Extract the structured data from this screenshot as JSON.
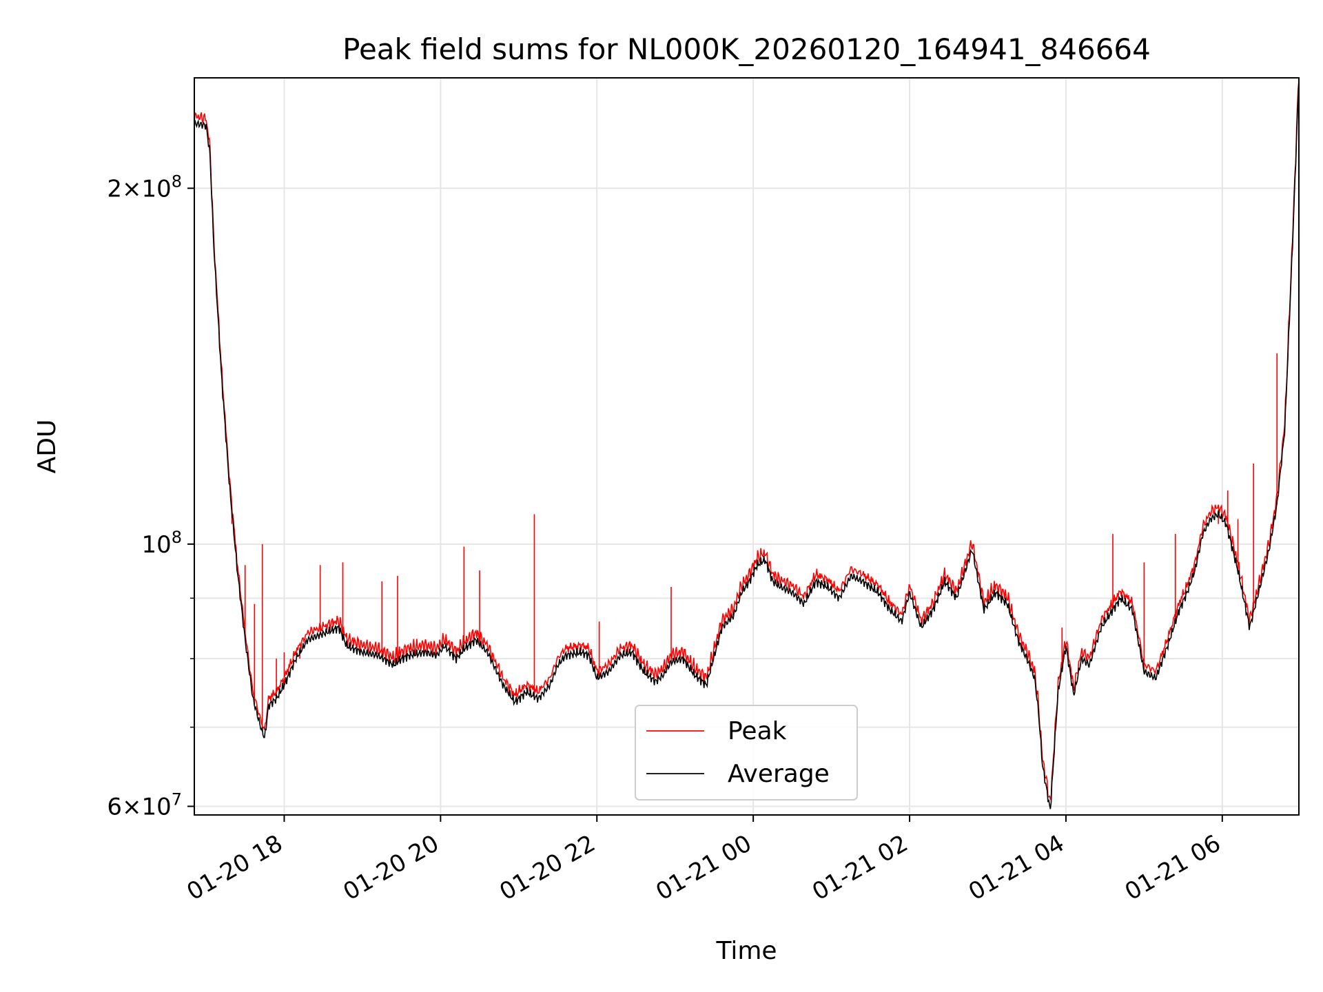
{
  "chart_data": {
    "type": "line",
    "title": "Peak field sums for NL000K_20260120_164941_846664",
    "xlabel": "Time",
    "ylabel": "ADU",
    "yscale": "log",
    "ylim": [
      59000000,
      248000000
    ],
    "xlim_hours": [
      16.85,
      30.98
    ],
    "grid": true,
    "legend_position": "lower-center",
    "x_ticks": [
      {
        "hour": 18,
        "label": "01-20 18"
      },
      {
        "hour": 20,
        "label": "01-20 20"
      },
      {
        "hour": 22,
        "label": "01-20 22"
      },
      {
        "hour": 24,
        "label": "01-21 00"
      },
      {
        "hour": 26,
        "label": "01-21 02"
      },
      {
        "hour": 28,
        "label": "01-21 04"
      },
      {
        "hour": 30,
        "label": "01-21 06"
      }
    ],
    "y_major_ticks": [
      {
        "value": 60000000,
        "mant": "6",
        "exp": "7"
      },
      {
        "value": 100000000,
        "mant": "",
        "exp": "8"
      },
      {
        "value": 200000000,
        "mant": "2",
        "exp": "8"
      }
    ],
    "y_minor_ticks": [
      70000000,
      80000000,
      90000000
    ],
    "series": [
      {
        "name": "Average",
        "color": "#000000",
        "x_hours": [
          16.85,
          17.0,
          17.05,
          17.1,
          17.2,
          17.3,
          17.4,
          17.5,
          17.6,
          17.7,
          17.75,
          17.8,
          17.9,
          18.0,
          18.15,
          18.3,
          18.5,
          18.7,
          18.8,
          18.9,
          19.0,
          19.2,
          19.4,
          19.5,
          19.6,
          19.8,
          19.95,
          20.05,
          20.2,
          20.3,
          20.45,
          20.6,
          20.8,
          20.95,
          21.1,
          21.25,
          21.4,
          21.5,
          21.6,
          21.8,
          21.9,
          22.0,
          22.15,
          22.3,
          22.45,
          22.6,
          22.75,
          22.85,
          22.95,
          23.1,
          23.25,
          23.4,
          23.6,
          23.75,
          23.85,
          23.95,
          24.05,
          24.15,
          24.25,
          24.35,
          24.5,
          24.65,
          24.8,
          24.95,
          25.1,
          25.25,
          25.4,
          25.6,
          25.75,
          25.9,
          26.0,
          26.15,
          26.3,
          26.45,
          26.6,
          26.8,
          26.95,
          27.1,
          27.25,
          27.4,
          27.5,
          27.6,
          27.65,
          27.7,
          27.8,
          27.9,
          28.0,
          28.1,
          28.2,
          28.3,
          28.45,
          28.6,
          28.7,
          28.85,
          29.0,
          29.15,
          29.3,
          29.45,
          29.55,
          29.65,
          29.75,
          29.85,
          29.95,
          30.05,
          30.2,
          30.35,
          30.5,
          30.6,
          30.7,
          30.8,
          30.9,
          30.98
        ],
        "values": [
          227000000,
          226000000,
          214000000,
          178000000,
          138000000,
          112000000,
          95000000,
          83000000,
          74000000,
          70000000,
          68500000,
          73000000,
          74000000,
          76000000,
          80000000,
          83000000,
          84000000,
          85000000,
          82000000,
          81500000,
          81000000,
          80500000,
          79000000,
          80000000,
          80500000,
          81000000,
          80500000,
          82000000,
          80000000,
          81500000,
          83000000,
          81000000,
          76000000,
          73500000,
          75000000,
          74000000,
          76000000,
          79000000,
          80500000,
          81000000,
          80500000,
          77000000,
          78000000,
          80500000,
          81000000,
          78000000,
          76500000,
          77500000,
          79500000,
          80000000,
          77500000,
          76000000,
          85000000,
          87000000,
          91000000,
          93000000,
          96000000,
          97000000,
          93000000,
          92000000,
          91000000,
          89000000,
          93000000,
          92000000,
          90000000,
          94000000,
          93000000,
          91000000,
          88000000,
          86000000,
          91000000,
          85000000,
          88000000,
          93000000,
          90000000,
          99000000,
          88000000,
          91000000,
          89000000,
          82500000,
          80000000,
          77000000,
          72000000,
          65000000,
          59500000,
          75000000,
          82000000,
          74500000,
          80000000,
          79000000,
          85000000,
          88000000,
          90000000,
          88000000,
          78000000,
          77000000,
          82000000,
          88000000,
          91000000,
          95000000,
          102000000,
          105000000,
          106000000,
          104000000,
          95000000,
          85000000,
          93000000,
          99000000,
          108000000,
          125000000,
          180000000,
          248000000
        ]
      },
      {
        "name": "Peak",
        "color": "#ff0000",
        "spikes": [
          {
            "hour": 17.33,
            "value": 104000000
          },
          {
            "hour": 17.5,
            "value": 96000000
          },
          {
            "hour": 17.62,
            "value": 89000000
          },
          {
            "hour": 17.72,
            "value": 100000000
          },
          {
            "hour": 17.9,
            "value": 80000000
          },
          {
            "hour": 18.0,
            "value": 81000000
          },
          {
            "hour": 18.2,
            "value": 80000000
          },
          {
            "hour": 18.46,
            "value": 96000000
          },
          {
            "hour": 18.75,
            "value": 96500000
          },
          {
            "hour": 19.25,
            "value": 93000000
          },
          {
            "hour": 19.45,
            "value": 94000000
          },
          {
            "hour": 20.3,
            "value": 99500000
          },
          {
            "hour": 20.5,
            "value": 95000000
          },
          {
            "hour": 21.2,
            "value": 106000000
          },
          {
            "hour": 22.03,
            "value": 86000000
          },
          {
            "hour": 22.95,
            "value": 92000000
          },
          {
            "hour": 27.95,
            "value": 85000000
          },
          {
            "hour": 28.6,
            "value": 102000000
          },
          {
            "hour": 29.0,
            "value": 96500000
          },
          {
            "hour": 29.4,
            "value": 102000000
          },
          {
            "hour": 29.95,
            "value": 104000000
          },
          {
            "hour": 30.07,
            "value": 111000000
          },
          {
            "hour": 30.2,
            "value": 105000000
          },
          {
            "hour": 30.4,
            "value": 117000000
          },
          {
            "hour": 30.7,
            "value": 145000000
          }
        ]
      }
    ]
  }
}
